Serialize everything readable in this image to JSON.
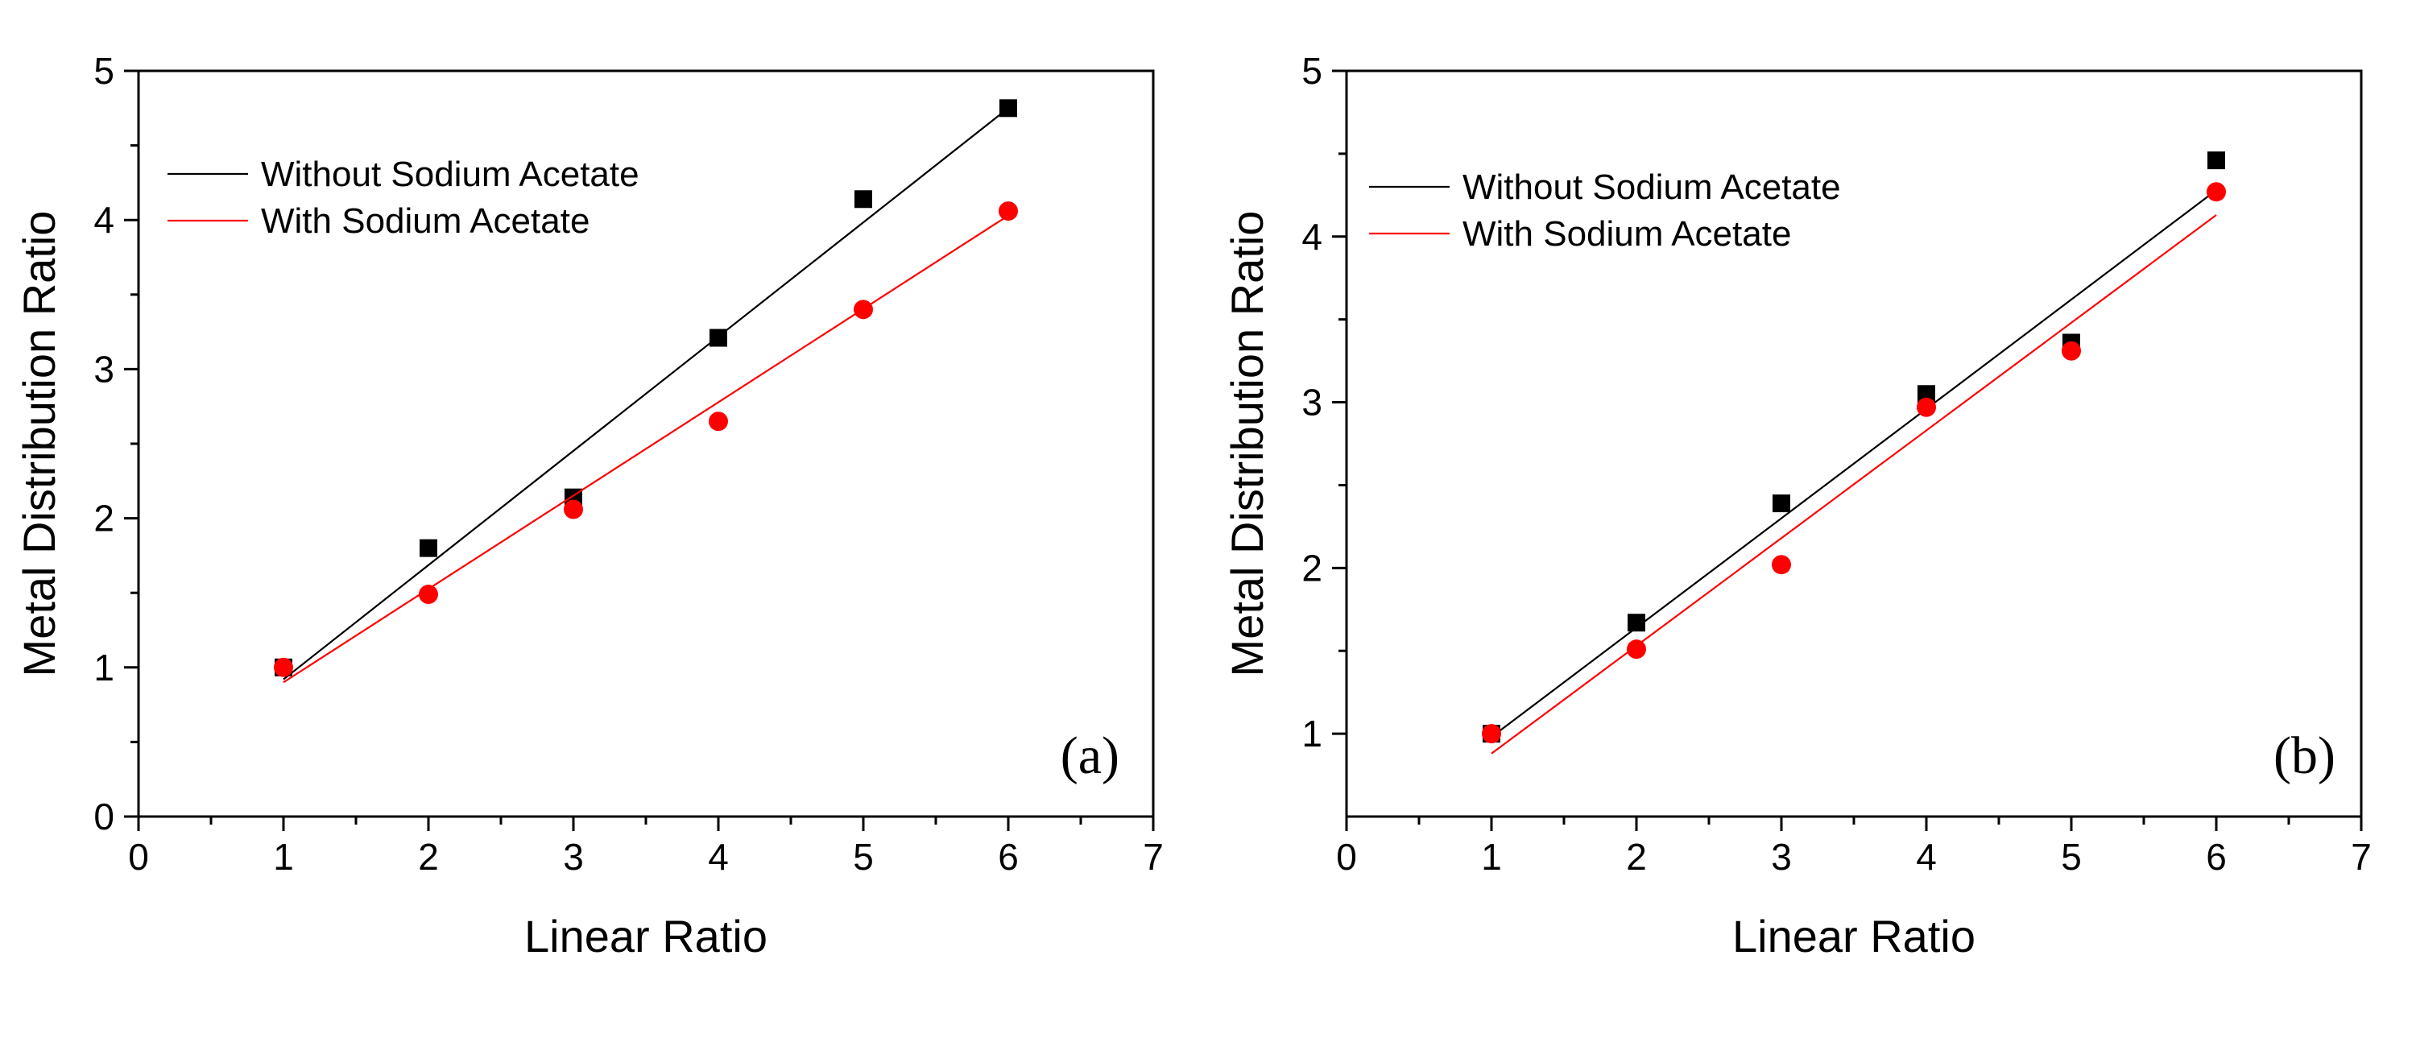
{
  "chart_data": [
    {
      "type": "scatter",
      "panel_label": "(a)",
      "xlabel": "Linear Ratio",
      "ylabel": "Metal Distribution Ratio",
      "xlim": [
        0,
        7
      ],
      "ylim": [
        0,
        5
      ],
      "x_ticks": [
        0,
        1,
        2,
        3,
        4,
        5,
        6,
        7
      ],
      "y_ticks": [
        0,
        1,
        2,
        3,
        4,
        5
      ],
      "legend_position": "top-left",
      "series": [
        {
          "name": "Without Sodium Acetate",
          "color": "#000000",
          "marker": "square",
          "x": [
            1,
            2,
            3,
            4,
            5,
            6
          ],
          "values": [
            1.0,
            1.8,
            2.14,
            3.21,
            4.14,
            4.75
          ],
          "fit": {
            "x": [
              1,
              6
            ],
            "y": [
              0.92,
              4.75
            ]
          }
        },
        {
          "name": "With Sodium Acetate",
          "color": "#ff0000",
          "marker": "circle",
          "x": [
            1,
            2,
            3,
            4,
            5,
            6
          ],
          "values": [
            1.0,
            1.49,
            2.06,
            2.65,
            3.4,
            4.06
          ],
          "fit": {
            "x": [
              1,
              6
            ],
            "y": [
              0.9,
              4.03
            ]
          }
        }
      ]
    },
    {
      "type": "scatter",
      "panel_label": "(b)",
      "xlabel": "Linear Ratio",
      "ylabel": "Metal Distribution Ratio",
      "xlim": [
        0,
        7
      ],
      "ylim": [
        0.5,
        5
      ],
      "x_ticks": [
        0,
        1,
        2,
        3,
        4,
        5,
        6,
        7
      ],
      "y_ticks": [
        1,
        2,
        3,
        4,
        5
      ],
      "legend_position": "top-left",
      "series": [
        {
          "name": "Without Sodium Acetate",
          "color": "#000000",
          "marker": "square",
          "x": [
            1,
            2,
            3,
            4,
            5,
            6
          ],
          "values": [
            1.0,
            1.67,
            2.39,
            3.05,
            3.36,
            4.46
          ],
          "fit": {
            "x": [
              1,
              6
            ],
            "y": [
              0.98,
              4.28
            ]
          }
        },
        {
          "name": "With Sodium Acetate",
          "color": "#ff0000",
          "marker": "circle",
          "x": [
            1,
            2,
            3,
            4,
            5,
            6
          ],
          "values": [
            1.0,
            1.51,
            2.02,
            2.97,
            3.31,
            4.27
          ],
          "fit": {
            "x": [
              1,
              6
            ],
            "y": [
              0.88,
              4.13
            ]
          }
        }
      ]
    }
  ]
}
